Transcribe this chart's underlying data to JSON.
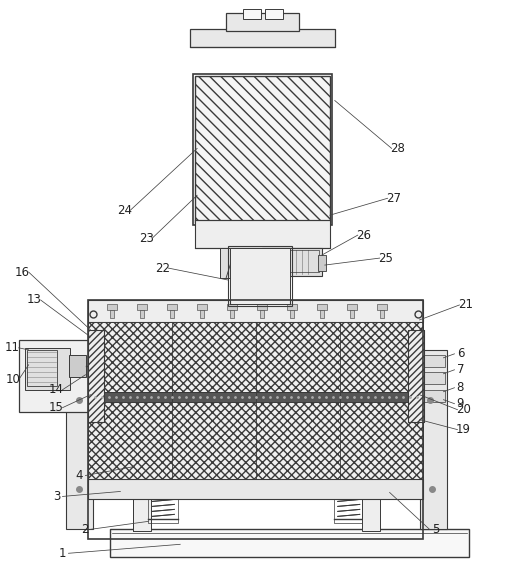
{
  "background_color": "#ffffff",
  "line_color": "#3a3a3a",
  "label_color": "#222222",
  "label_fontsize": 8.5,
  "fig_width": 5.09,
  "fig_height": 5.82,
  "dpi": 100
}
